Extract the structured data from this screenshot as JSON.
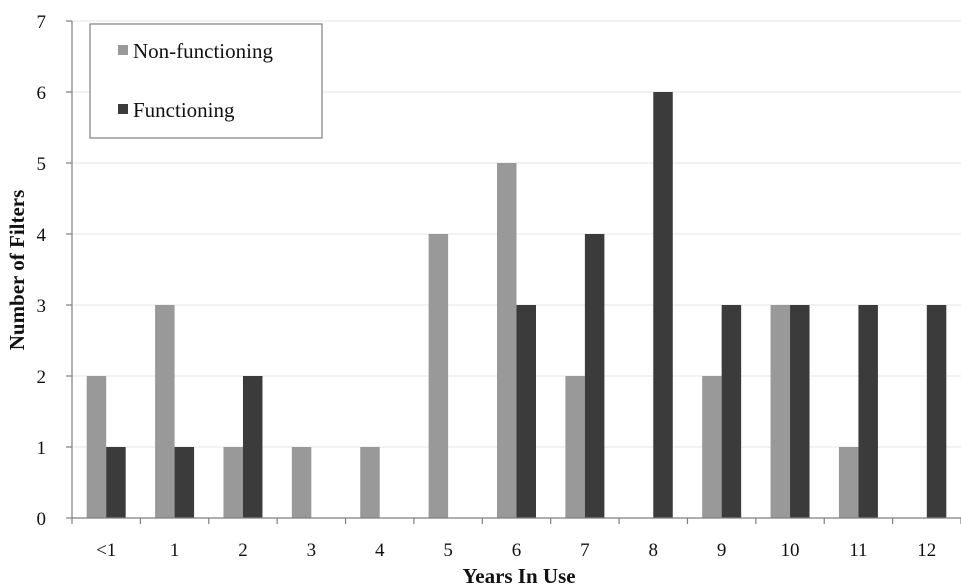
{
  "chart_data": {
    "type": "bar",
    "categories": [
      "<1",
      "1",
      "2",
      "3",
      "4",
      "5",
      "6",
      "7",
      "8",
      "9",
      "10",
      "11",
      "12"
    ],
    "series": [
      {
        "name": "Non-functioning",
        "values": [
          2,
          3,
          1,
          1,
          1,
          4,
          5,
          2,
          0,
          2,
          3,
          1,
          0
        ],
        "color": "#999999"
      },
      {
        "name": "Functioning",
        "values": [
          1,
          1,
          2,
          0,
          0,
          0,
          3,
          4,
          6,
          3,
          3,
          3,
          3
        ],
        "color": "#3b3b3b"
      }
    ],
    "title": "",
    "xlabel": "Years In Use",
    "ylabel": "Number of Filters",
    "ylim": [
      0,
      7
    ],
    "yticks": [
      "0",
      "1",
      "2",
      "3",
      "4",
      "5",
      "6",
      "7"
    ],
    "grid": true,
    "legend": "top-left"
  }
}
